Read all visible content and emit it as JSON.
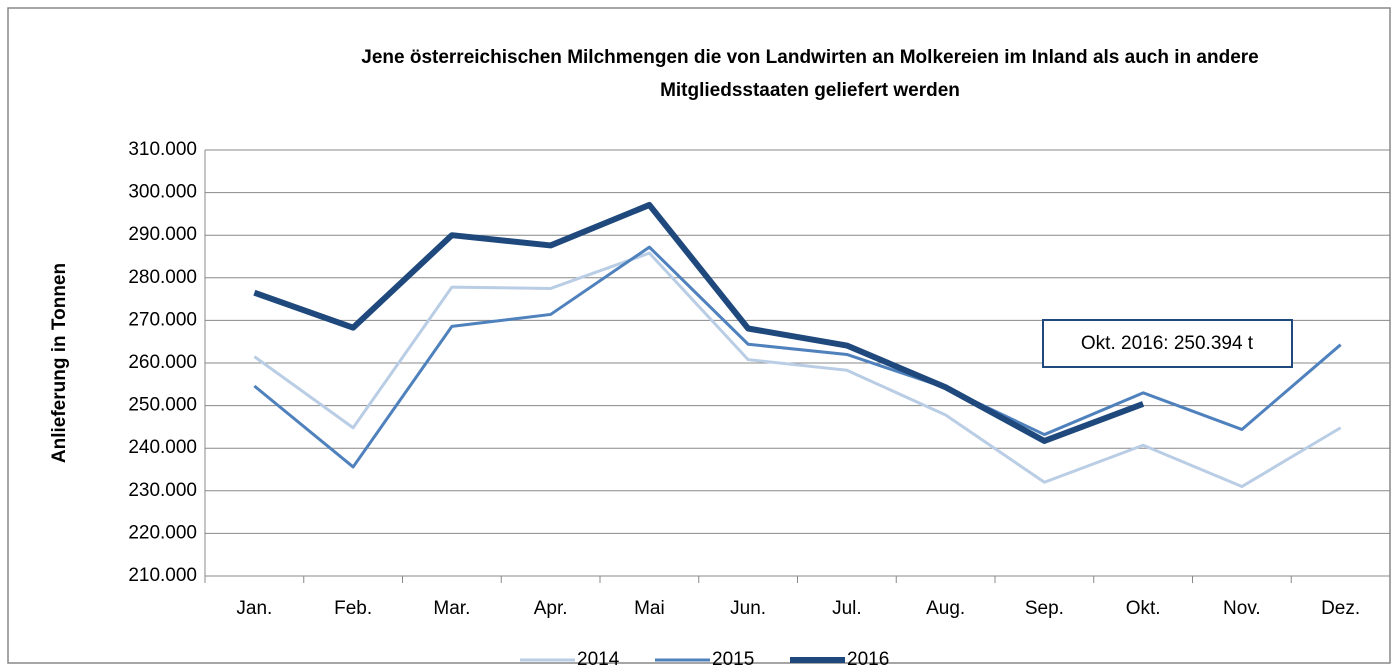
{
  "chart_data": {
    "type": "line",
    "title": [
      "Jene österreichischen Milchmengen die von Landwirten an Molkereien im Inland als auch in andere",
      "Mitgliedsstaaten geliefert werden"
    ],
    "y_label": "Anlieferung in Tonnen",
    "categories": [
      "Jan.",
      "Feb.",
      "Mar.",
      "Apr.",
      "Mai",
      "Jun.",
      "Jul.",
      "Aug.",
      "Sep.",
      "Okt.",
      "Nov.",
      "Dez."
    ],
    "series": [
      {
        "name": "2014",
        "color": "#b9cde5",
        "width": 3,
        "values": [
          261500,
          244800,
          277800,
          277500,
          285800,
          260800,
          258300,
          247800,
          232000,
          240700,
          231000,
          244800
        ]
      },
      {
        "name": "2015",
        "color": "#4f81bd",
        "width": 3,
        "values": [
          254600,
          235600,
          268600,
          271400,
          287200,
          264400,
          262000,
          254200,
          243200,
          253000,
          244400,
          264300
        ]
      },
      {
        "name": "2016",
        "color": "#1f497d",
        "width": 6,
        "values": [
          276500,
          268300,
          290000,
          287600,
          297100,
          268100,
          264100,
          254300,
          241700,
          250394,
          null,
          null
        ]
      }
    ],
    "ylim": [
      210000,
      310000
    ],
    "yticks": [
      {
        "value": 210000,
        "label": "210.000"
      },
      {
        "value": 220000,
        "label": "220.000"
      },
      {
        "value": 230000,
        "label": "230.000"
      },
      {
        "value": 240000,
        "label": "240.000"
      },
      {
        "value": 250000,
        "label": "250.000"
      },
      {
        "value": 260000,
        "label": "260.000"
      },
      {
        "value": 270000,
        "label": "270.000"
      },
      {
        "value": 280000,
        "label": "280.000"
      },
      {
        "value": 290000,
        "label": "290.000"
      },
      {
        "value": 300000,
        "label": "300.000"
      },
      {
        "value": 310000,
        "label": "310.000"
      }
    ],
    "grid": true,
    "annotation": "Okt. 2016: 250.394 t"
  }
}
